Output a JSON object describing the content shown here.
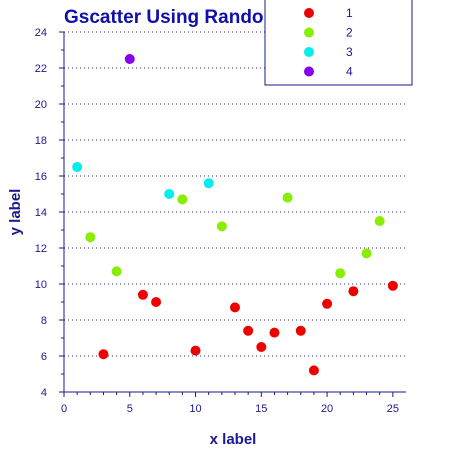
{
  "chart_data": {
    "type": "scatter",
    "title": "Gscatter Using Random Numbers",
    "xlabel": "x label",
    "ylabel": "y label",
    "xlim": [
      0,
      26
    ],
    "ylim": [
      4,
      24
    ],
    "xticks": [
      0,
      5,
      10,
      15,
      20,
      25
    ],
    "yticks": [
      4,
      6,
      8,
      10,
      12,
      14,
      16,
      18,
      20,
      22,
      24
    ],
    "grid": "horizontal dotted",
    "legend_position": "top-right",
    "series": [
      {
        "name": "1",
        "color": "#ee0000",
        "x": [
          3,
          6,
          7,
          10,
          13,
          14,
          15,
          16,
          18,
          19,
          20,
          22,
          25
        ],
        "y": [
          6.1,
          9.4,
          9.0,
          6.3,
          8.7,
          7.4,
          6.5,
          7.3,
          7.4,
          5.2,
          8.9,
          9.6,
          9.9
        ]
      },
      {
        "name": "2",
        "color": "#88ee00",
        "x": [
          2,
          4,
          9,
          12,
          17,
          21,
          23,
          24
        ],
        "y": [
          12.6,
          10.7,
          14.7,
          13.2,
          14.8,
          10.6,
          11.7,
          13.5
        ]
      },
      {
        "name": "3",
        "color": "#00eeee",
        "x": [
          1,
          8,
          11
        ],
        "y": [
          16.5,
          15.0,
          15.6
        ]
      },
      {
        "name": "4",
        "color": "#8800ee",
        "x": [
          5
        ],
        "y": [
          22.5
        ]
      }
    ]
  }
}
